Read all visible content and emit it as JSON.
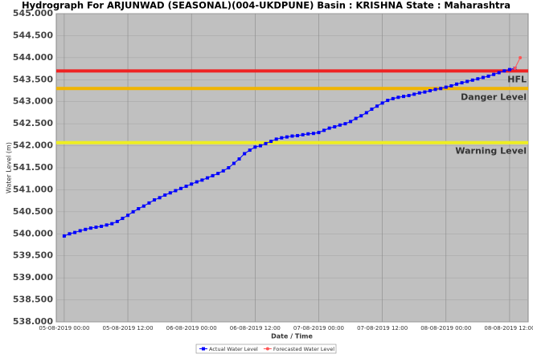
{
  "chart_data": {
    "type": "line",
    "title": "Hydrograph For ARJUNWAD (SEASONAL)(004-UKDPUNE) Basin : KRISHNA State : Maharashtra",
    "x_label": "Date / Time",
    "y_label": "Water Level (m)",
    "x": [
      "05-08-2019 00:00",
      "05-08-2019 01:00",
      "05-08-2019 02:00",
      "05-08-2019 03:00",
      "05-08-2019 04:00",
      "05-08-2019 05:00",
      "05-08-2019 06:00",
      "05-08-2019 07:00",
      "05-08-2019 08:00",
      "05-08-2019 09:00",
      "05-08-2019 10:00",
      "05-08-2019 11:00",
      "05-08-2019 12:00",
      "05-08-2019 13:00",
      "05-08-2019 14:00",
      "05-08-2019 15:00",
      "05-08-2019 16:00",
      "05-08-2019 17:00",
      "05-08-2019 18:00",
      "05-08-2019 19:00",
      "05-08-2019 20:00",
      "05-08-2019 21:00",
      "05-08-2019 22:00",
      "05-08-2019 23:00",
      "06-08-2019 00:00",
      "06-08-2019 01:00",
      "06-08-2019 02:00",
      "06-08-2019 03:00",
      "06-08-2019 04:00",
      "06-08-2019 05:00",
      "06-08-2019 06:00",
      "06-08-2019 07:00",
      "06-08-2019 08:00",
      "06-08-2019 09:00",
      "06-08-2019 10:00",
      "06-08-2019 11:00",
      "06-08-2019 12:00",
      "06-08-2019 13:00",
      "06-08-2019 14:00",
      "06-08-2019 15:00",
      "06-08-2019 16:00",
      "06-08-2019 17:00",
      "06-08-2019 18:00",
      "06-08-2019 19:00",
      "06-08-2019 20:00",
      "06-08-2019 21:00",
      "06-08-2019 22:00",
      "06-08-2019 23:00",
      "07-08-2019 00:00",
      "07-08-2019 01:00",
      "07-08-2019 02:00",
      "07-08-2019 03:00",
      "07-08-2019 04:00",
      "07-08-2019 05:00",
      "07-08-2019 06:00",
      "07-08-2019 07:00",
      "07-08-2019 08:00",
      "07-08-2019 09:00",
      "07-08-2019 10:00",
      "07-08-2019 11:00",
      "07-08-2019 12:00",
      "07-08-2019 13:00",
      "07-08-2019 14:00",
      "07-08-2019 15:00",
      "07-08-2019 16:00",
      "07-08-2019 17:00",
      "07-08-2019 18:00",
      "07-08-2019 19:00",
      "07-08-2019 20:00",
      "07-08-2019 21:00",
      "07-08-2019 22:00",
      "07-08-2019 23:00",
      "08-08-2019 00:00",
      "08-08-2019 01:00",
      "08-08-2019 02:00",
      "08-08-2019 03:00",
      "08-08-2019 04:00",
      "08-08-2019 05:00",
      "08-08-2019 06:00",
      "08-08-2019 07:00",
      "08-08-2019 08:00",
      "08-08-2019 09:00",
      "08-08-2019 10:00",
      "08-08-2019 11:00",
      "08-08-2019 12:00",
      "08-08-2019 13:00",
      "08-08-2019 14:00"
    ],
    "series": [
      {
        "name": "Actual Water Level",
        "color": "#0000ff",
        "marker": "square",
        "values": [
          539.95,
          540.0,
          540.03,
          540.07,
          540.1,
          540.13,
          540.15,
          540.17,
          540.2,
          540.23,
          540.28,
          540.35,
          540.42,
          540.5,
          540.57,
          540.63,
          540.7,
          540.77,
          540.82,
          540.88,
          540.93,
          540.98,
          541.03,
          541.08,
          541.13,
          541.18,
          541.22,
          541.27,
          541.32,
          541.37,
          541.43,
          541.5,
          541.6,
          541.7,
          541.82,
          541.9,
          541.97,
          542.0,
          542.05,
          542.1,
          542.15,
          542.18,
          542.2,
          542.22,
          542.23,
          542.25,
          542.27,
          542.28,
          542.3,
          542.35,
          542.4,
          542.43,
          542.47,
          542.5,
          542.55,
          542.62,
          542.68,
          542.75,
          542.83,
          542.9,
          542.97,
          543.03,
          543.07,
          543.1,
          543.12,
          543.14,
          543.17,
          543.2,
          543.22,
          543.25,
          543.28,
          543.3,
          543.33,
          543.36,
          543.4,
          543.43,
          543.46,
          543.49,
          543.52,
          543.55,
          543.58,
          543.62,
          543.66,
          543.7,
          543.73,
          543.76,
          null
        ]
      },
      {
        "name": "Forecasted Water Level",
        "color": "#ff5555",
        "marker": "circle",
        "values": [
          null,
          null,
          null,
          null,
          null,
          null,
          null,
          null,
          null,
          null,
          null,
          null,
          null,
          null,
          null,
          null,
          null,
          null,
          null,
          null,
          null,
          null,
          null,
          null,
          null,
          null,
          null,
          null,
          null,
          null,
          null,
          null,
          null,
          null,
          null,
          null,
          null,
          null,
          null,
          null,
          null,
          null,
          null,
          null,
          null,
          null,
          null,
          null,
          null,
          null,
          null,
          null,
          null,
          null,
          null,
          null,
          null,
          null,
          null,
          null,
          null,
          null,
          null,
          null,
          null,
          null,
          null,
          null,
          null,
          null,
          null,
          null,
          null,
          null,
          null,
          null,
          null,
          null,
          null,
          null,
          null,
          null,
          null,
          null,
          null,
          543.76,
          544.0
        ]
      }
    ],
    "reference_lines": [
      {
        "name": "HFL",
        "value": 543.7,
        "color": "#ee2222"
      },
      {
        "name": "Danger Level",
        "value": 543.3,
        "color": "#f0b400"
      },
      {
        "name": "Warning Level",
        "value": 542.07,
        "color": "#eeee22"
      }
    ],
    "xlim": [
      "04-08-2019 22:30",
      "08-08-2019 15:30"
    ],
    "xticks": [
      "05-08-2019 00:00",
      "05-08-2019 12:00",
      "06-08-2019 00:00",
      "06-08-2019 12:00",
      "07-08-2019 00:00",
      "07-08-2019 12:00",
      "08-08-2019 00:00",
      "08-08-2019 12:00"
    ],
    "ylim": [
      538,
      545
    ],
    "yticks": [
      {
        "value": 538,
        "label": "538.000"
      },
      {
        "value": 538.5,
        "label": "538.500"
      },
      {
        "value": 539,
        "label": "539.000"
      },
      {
        "value": 539.5,
        "label": "539.500"
      },
      {
        "value": 540,
        "label": "540.000"
      },
      {
        "value": 540.5,
        "label": "540.500"
      },
      {
        "value": 541,
        "label": "541.000"
      },
      {
        "value": 541.5,
        "label": "541.500"
      },
      {
        "value": 542,
        "label": "542.000"
      },
      {
        "value": 542.5,
        "label": "542.500"
      },
      {
        "value": 543,
        "label": "543.000"
      },
      {
        "value": 543.5,
        "label": "543.500"
      },
      {
        "value": 544,
        "label": "544.000"
      },
      {
        "value": 544.5,
        "label": "544.500"
      },
      {
        "value": 545,
        "label": "545.000"
      }
    ],
    "grid": true,
    "legend": "bottom"
  }
}
